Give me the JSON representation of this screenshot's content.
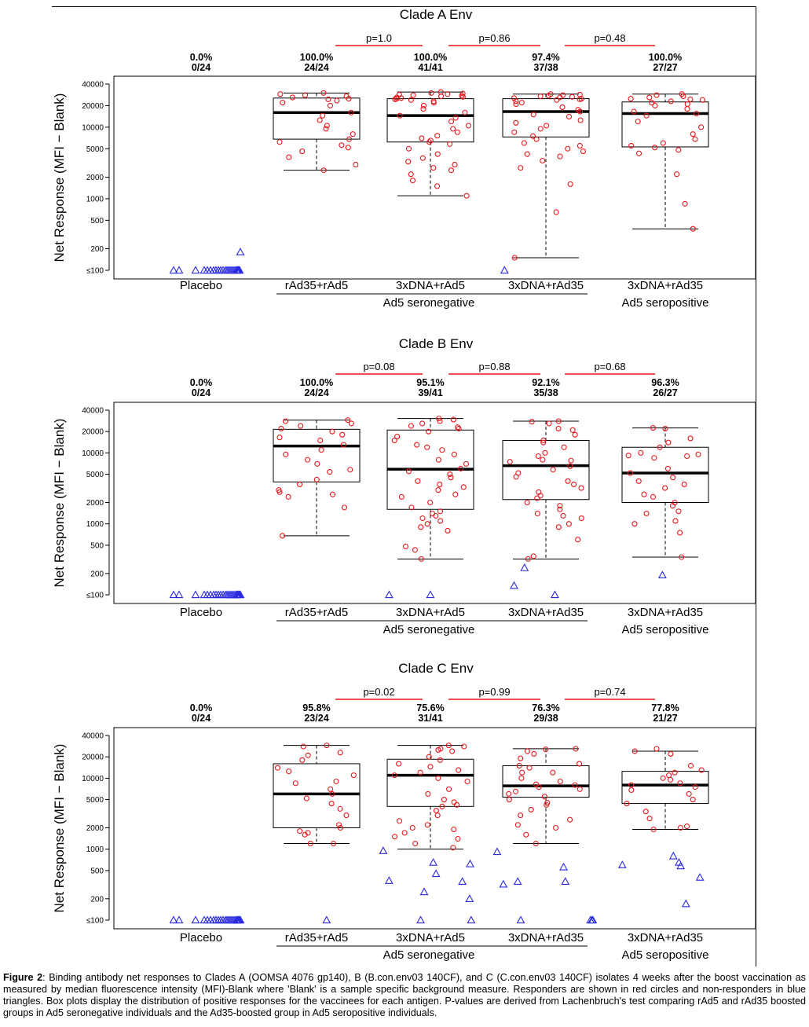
{
  "caption": {
    "label": "Figure 2",
    "text": ": Binding antibody net responses to Clades A (OOMSA 4076 gp140), B (B.con.env03 140CF), and C (C.con.env03 140CF) isolates 4 weeks after the boost vaccination as measured by median fluorescence intensity (MFI)-Blank where 'Blank' is a sample specific background measure. Responders are shown in red circles and non-responders in blue triangles. Box plots display the distribution of positive responses for the vaccinees for each antigen.  P-values are derived from Lachenbruch's test comparing rAd5 and rAd35 boosted groups in Ad5 seronegative individuals and the Ad35-boosted group in Ad5 seropositive individuals."
  },
  "colors": {
    "responder": "#e8161b",
    "nonresponder": "#2a2ae0",
    "pbar": "#e8161b",
    "box": "#000000"
  },
  "chart_data": [
    {
      "type": "box",
      "title": "Clade A Env",
      "ylabel": "Net Response (MFI − Blank)",
      "yscale": "log",
      "yticks": [
        100,
        200,
        500,
        1000,
        2000,
        5000,
        10000,
        20000,
        40000
      ],
      "ytick_labels": [
        "≤100",
        "200",
        "500",
        "1000",
        "2000",
        "5000",
        "10000",
        "20000",
        "40000"
      ],
      "groups": [
        "Placebo",
        "rAd35+rAd5",
        "3xDNA+rAd5",
        "3xDNA+rAd35",
        "3xDNA+rAd35"
      ],
      "group_labels": {
        "seronegative": "Ad5 seronegative",
        "seropositive": "Ad5 seropositive"
      },
      "percent": [
        "0.0%",
        "100.0%",
        "100.0%",
        "97.4%",
        "100.0%"
      ],
      "counts": [
        "0/24",
        "24/24",
        "41/41",
        "37/38",
        "27/27"
      ],
      "pvalues": [
        "p=1.0",
        "p=0.86",
        "p=0.48"
      ],
      "boxes": [
        null,
        {
          "min": 2500,
          "q1": 6800,
          "median": 16000,
          "q3": 25500,
          "max": 30000
        },
        {
          "min": 1100,
          "q1": 6200,
          "median": 14500,
          "q3": 25000,
          "max": 31000
        },
        {
          "min": 150,
          "q1": 7300,
          "median": 16500,
          "q3": 25000,
          "max": 29000
        },
        {
          "min": 380,
          "q1": 5300,
          "median": 15500,
          "q3": 22500,
          "max": 29000
        }
      ],
      "responders": [
        [],
        [
          30000,
          29000,
          28000,
          27000,
          26000,
          25000,
          24500,
          23500,
          22000,
          20000,
          16000,
          14500,
          12500,
          10500,
          9500,
          8000,
          6800,
          6200,
          5600,
          5200,
          4600,
          3800,
          3000,
          2500
        ],
        [
          31000,
          30000,
          29500,
          29000,
          28500,
          28000,
          27500,
          27000,
          26500,
          26000,
          25500,
          25000,
          24500,
          24000,
          23000,
          22000,
          20000,
          18000,
          16000,
          14500,
          13500,
          12000,
          10500,
          9500,
          8500,
          7600,
          7000,
          6500,
          6200,
          5800,
          5000,
          4200,
          3700,
          3300,
          3000,
          2700,
          2500,
          2200,
          1800,
          1500,
          1100
        ],
        [
          29000,
          28500,
          28000,
          27500,
          27000,
          26500,
          26000,
          25500,
          25000,
          24500,
          24000,
          23000,
          22000,
          21000,
          19000,
          17500,
          16500,
          15000,
          14000,
          12500,
          11500,
          10500,
          9500,
          8500,
          7500,
          6800,
          6000,
          5500,
          5000,
          4600,
          4200,
          3900,
          3400,
          2700,
          1600,
          650,
          150
        ],
        [
          29000,
          28000,
          27000,
          26000,
          25000,
          24500,
          24000,
          23000,
          22000,
          21000,
          20000,
          18000,
          16500,
          15500,
          14500,
          12000,
          10000,
          8000,
          6800,
          6000,
          5500,
          5200,
          4800,
          4300,
          2200,
          850,
          380
        ]
      ],
      "nonresponders": [
        [
          100,
          100,
          100,
          100,
          100,
          100,
          100,
          100,
          100,
          100,
          100,
          100,
          100,
          100,
          100,
          100,
          100,
          100,
          100,
          100,
          100,
          100,
          100,
          180
        ],
        [],
        [],
        [
          100
        ],
        []
      ]
    },
    {
      "type": "box",
      "title": "Clade B Env",
      "ylabel": "Net Response (MFI − Blank)",
      "yscale": "log",
      "yticks": [
        100,
        200,
        500,
        1000,
        2000,
        5000,
        10000,
        20000,
        40000
      ],
      "ytick_labels": [
        "≤100",
        "200",
        "500",
        "1000",
        "2000",
        "5000",
        "10000",
        "20000",
        "40000"
      ],
      "groups": [
        "Placebo",
        "rAd35+rAd5",
        "3xDNA+rAd5",
        "3xDNA+rAd35",
        "3xDNA+rAd35"
      ],
      "group_labels": {
        "seronegative": "Ad5 seronegative",
        "seropositive": "Ad5 seropositive"
      },
      "percent": [
        "0.0%",
        "100.0%",
        "95.1%",
        "92.1%",
        "96.3%"
      ],
      "counts": [
        "0/24",
        "24/24",
        "39/41",
        "35/38",
        "26/27"
      ],
      "pvalues": [
        "p=0.08",
        "p=0.88",
        "p=0.68"
      ],
      "boxes": [
        null,
        {
          "min": 680,
          "q1": 3900,
          "median": 12500,
          "q3": 21500,
          "max": 29000
        },
        {
          "min": 320,
          "q1": 1600,
          "median": 5900,
          "q3": 21000,
          "max": 30500
        },
        {
          "min": 320,
          "q1": 2200,
          "median": 6600,
          "q3": 15000,
          "max": 28000
        },
        {
          "min": 340,
          "q1": 2000,
          "median": 5200,
          "q3": 12000,
          "max": 22500
        }
      ],
      "responders": [
        [],
        [
          29000,
          28000,
          26000,
          24000,
          22000,
          20000,
          18000,
          16500,
          15000,
          13000,
          11000,
          9500,
          8000,
          7000,
          5800,
          5400,
          4200,
          3600,
          3000,
          2800,
          2600,
          2400,
          680,
          1700
        ],
        [
          30500,
          29500,
          28000,
          26000,
          24000,
          23000,
          22000,
          20000,
          17000,
          15000,
          13000,
          12000,
          11000,
          9500,
          8000,
          7000,
          6000,
          5500,
          5000,
          4500,
          4000,
          3600,
          3000,
          2600,
          2400,
          2000,
          1700,
          1500,
          1400,
          1300,
          1200,
          1100,
          1000,
          900,
          800,
          480,
          430,
          320,
          3300
        ],
        [
          28000,
          27500,
          26000,
          22000,
          21000,
          18000,
          15000,
          14000,
          12000,
          10000,
          9000,
          8000,
          7500,
          6500,
          5800,
          5200,
          4600,
          4000,
          3600,
          3200,
          2800,
          2500,
          2300,
          2000,
          1800,
          1600,
          1400,
          1300,
          1200,
          1000,
          900,
          600,
          350,
          320,
          7800
        ],
        [
          22500,
          22000,
          16000,
          14000,
          12000,
          10000,
          9500,
          9000,
          8500,
          6000,
          5200,
          4500,
          4000,
          3600,
          3200,
          2600,
          2400,
          2000,
          1800,
          1500,
          1400,
          1100,
          1000,
          750,
          340,
          9200
        ]
      ],
      "nonresponders": [
        [
          100,
          100,
          100,
          100,
          100,
          100,
          100,
          100,
          100,
          100,
          100,
          100,
          100,
          100,
          100,
          100,
          100,
          100,
          100,
          100,
          100,
          100,
          100,
          100
        ],
        [],
        [
          100,
          100
        ],
        [
          240,
          100,
          135
        ],
        [
          190
        ]
      ]
    },
    {
      "type": "box",
      "title": "Clade C Env",
      "ylabel": "Net Response (MFI − Blank)",
      "yscale": "log",
      "yticks": [
        100,
        200,
        500,
        1000,
        2000,
        5000,
        10000,
        20000,
        40000
      ],
      "ytick_labels": [
        "≤100",
        "200",
        "500",
        "1000",
        "2000",
        "5000",
        "10000",
        "20000",
        "40000"
      ],
      "groups": [
        "Placebo",
        "rAd35+rAd5",
        "3xDNA+rAd5",
        "3xDNA+rAd35",
        "3xDNA+rAd35"
      ],
      "group_labels": {
        "seronegative": "Ad5 seronegative",
        "seropositive": "Ad5 seropositive"
      },
      "percent": [
        "0.0%",
        "95.8%",
        "75.6%",
        "76.3%",
        "77.8%"
      ],
      "counts": [
        "0/24",
        "23/24",
        "31/41",
        "29/38",
        "21/27"
      ],
      "pvalues": [
        "p=0.02",
        "p=0.99",
        "p=0.74"
      ],
      "boxes": [
        null,
        {
          "min": 1200,
          "q1": 2000,
          "median": 6000,
          "q3": 16000,
          "max": 29000
        },
        {
          "min": 1000,
          "q1": 4000,
          "median": 11000,
          "q3": 18500,
          "max": 29000
        },
        {
          "min": 1200,
          "q1": 5400,
          "median": 7800,
          "q3": 15000,
          "max": 26000
        },
        {
          "min": 1900,
          "q1": 4400,
          "median": 8000,
          "q3": 12500,
          "max": 24000
        }
      ],
      "responders": [
        [],
        [
          29000,
          28000,
          23000,
          21000,
          18000,
          14000,
          12500,
          11000,
          9000,
          8500,
          7000,
          6000,
          5200,
          4400,
          3700,
          3000,
          2200,
          2000,
          1800,
          1700,
          1600,
          1200,
          1200
        ],
        [
          29000,
          28000,
          26000,
          25000,
          24000,
          20000,
          18000,
          16000,
          14500,
          13000,
          12000,
          11000,
          10000,
          9000,
          7000,
          6000,
          5000,
          4600,
          4000,
          3500,
          3000,
          2500,
          2200,
          2000,
          1900,
          1700,
          1500,
          1400,
          1200,
          1050,
          4200
        ],
        [
          26000,
          25500,
          24000,
          22000,
          19000,
          16000,
          15000,
          14000,
          12000,
          10000,
          9000,
          8000,
          7500,
          7000,
          6500,
          6000,
          5500,
          5000,
          4500,
          4200,
          3600,
          3000,
          2600,
          2200,
          2000,
          1600,
          1200,
          12000,
          8200
        ],
        [
          26000,
          24000,
          22000,
          15000,
          13000,
          12000,
          11000,
          10000,
          9500,
          8500,
          8000,
          7500,
          6800,
          6000,
          5000,
          4400,
          3400,
          2700,
          2100,
          2000,
          1900
        ]
      ],
      "nonresponders": [
        [
          100,
          100,
          100,
          100,
          100,
          100,
          100,
          100,
          100,
          100,
          100,
          100,
          100,
          100,
          100,
          100,
          100,
          100,
          100,
          100,
          100,
          100,
          100,
          100
        ],
        [
          100
        ],
        [
          950,
          650,
          620,
          450,
          360,
          350,
          250,
          200,
          100,
          100
        ],
        [
          920,
          560,
          350,
          320,
          350,
          100,
          100,
          100,
          100
        ],
        [
          800,
          650,
          600,
          580,
          400,
          170
        ]
      ]
    }
  ]
}
